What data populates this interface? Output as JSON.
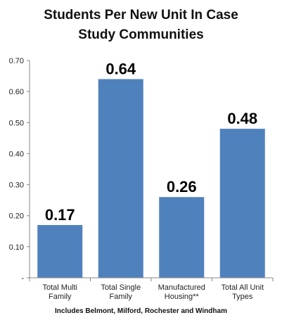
{
  "chart_data": {
    "type": "bar",
    "title_lines": [
      "Students Per New Unit In Case",
      "Study Communities"
    ],
    "categories": [
      [
        "Total Multi",
        "Family"
      ],
      [
        "Total Single",
        "Family"
      ],
      [
        "Manufactured",
        "Housing**"
      ],
      [
        "Total All Unit",
        "Types"
      ]
    ],
    "values": [
      0.17,
      0.64,
      0.26,
      0.48
    ],
    "data_labels": [
      "0.17",
      "0.64",
      "0.26",
      "0.48"
    ],
    "ylim": [
      0,
      0.7
    ],
    "yticks": [
      0,
      0.1,
      0.2,
      0.3,
      0.4,
      0.5,
      0.6,
      0.7
    ],
    "ytick_labels": [
      "-",
      "0.10",
      "0.20",
      "0.30",
      "0.40",
      "0.50",
      "0.60",
      "0.70"
    ],
    "grid": false,
    "legend": "none",
    "bar_color": "#4f81bd",
    "footnote": "Includes Belmont, Milford, Rochester and Windham"
  }
}
